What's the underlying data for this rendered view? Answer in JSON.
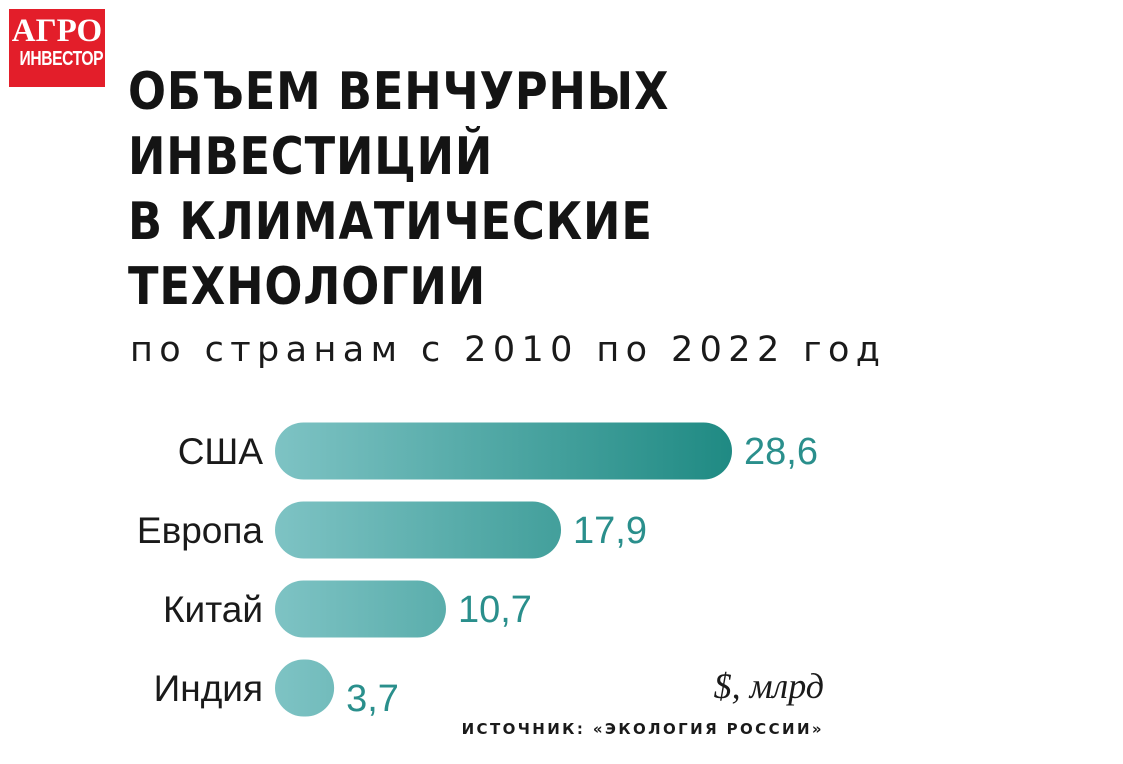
{
  "logo": {
    "line1": "АГРО",
    "line2": "ИНВЕСТОР"
  },
  "title_lines": [
    "ОБЪЕМ ВЕНЧУРНЫХ",
    "ИНВЕСТИЦИЙ",
    "В КЛИМАТИЧЕСКИЕ",
    "ТЕХНОЛОГИИ"
  ],
  "subtitle": "по странам с 2010 по 2022 год",
  "unit_label": "$, млрд",
  "source": "ИСТОЧНИК: «ЭКОЛОГИЯ РОССИИ»",
  "colors": {
    "bar_light": "#7ec3c4",
    "bar_dark": "#1f8a83",
    "value_text": "#2a8f8c",
    "logo_red": "#e31e2a"
  },
  "chart_data": {
    "type": "bar",
    "orientation": "horizontal",
    "title": "ОБЪЕМ ВЕНЧУРНЫХ ИНВЕСТИЦИЙ В КЛИМАТИЧЕСКИЕ ТЕХНОЛОГИИ",
    "subtitle": "по странам с 2010 по 2022 год",
    "categories": [
      "США",
      "Европа",
      "Китай",
      "Индия"
    ],
    "values": [
      28.6,
      17.9,
      10.7,
      3.7
    ],
    "value_labels": [
      "28,6",
      "17,9",
      "10,7",
      "3,7"
    ],
    "unit": "$, млрд",
    "xlim": [
      0,
      28.6
    ],
    "grid": false,
    "legend": "none"
  }
}
